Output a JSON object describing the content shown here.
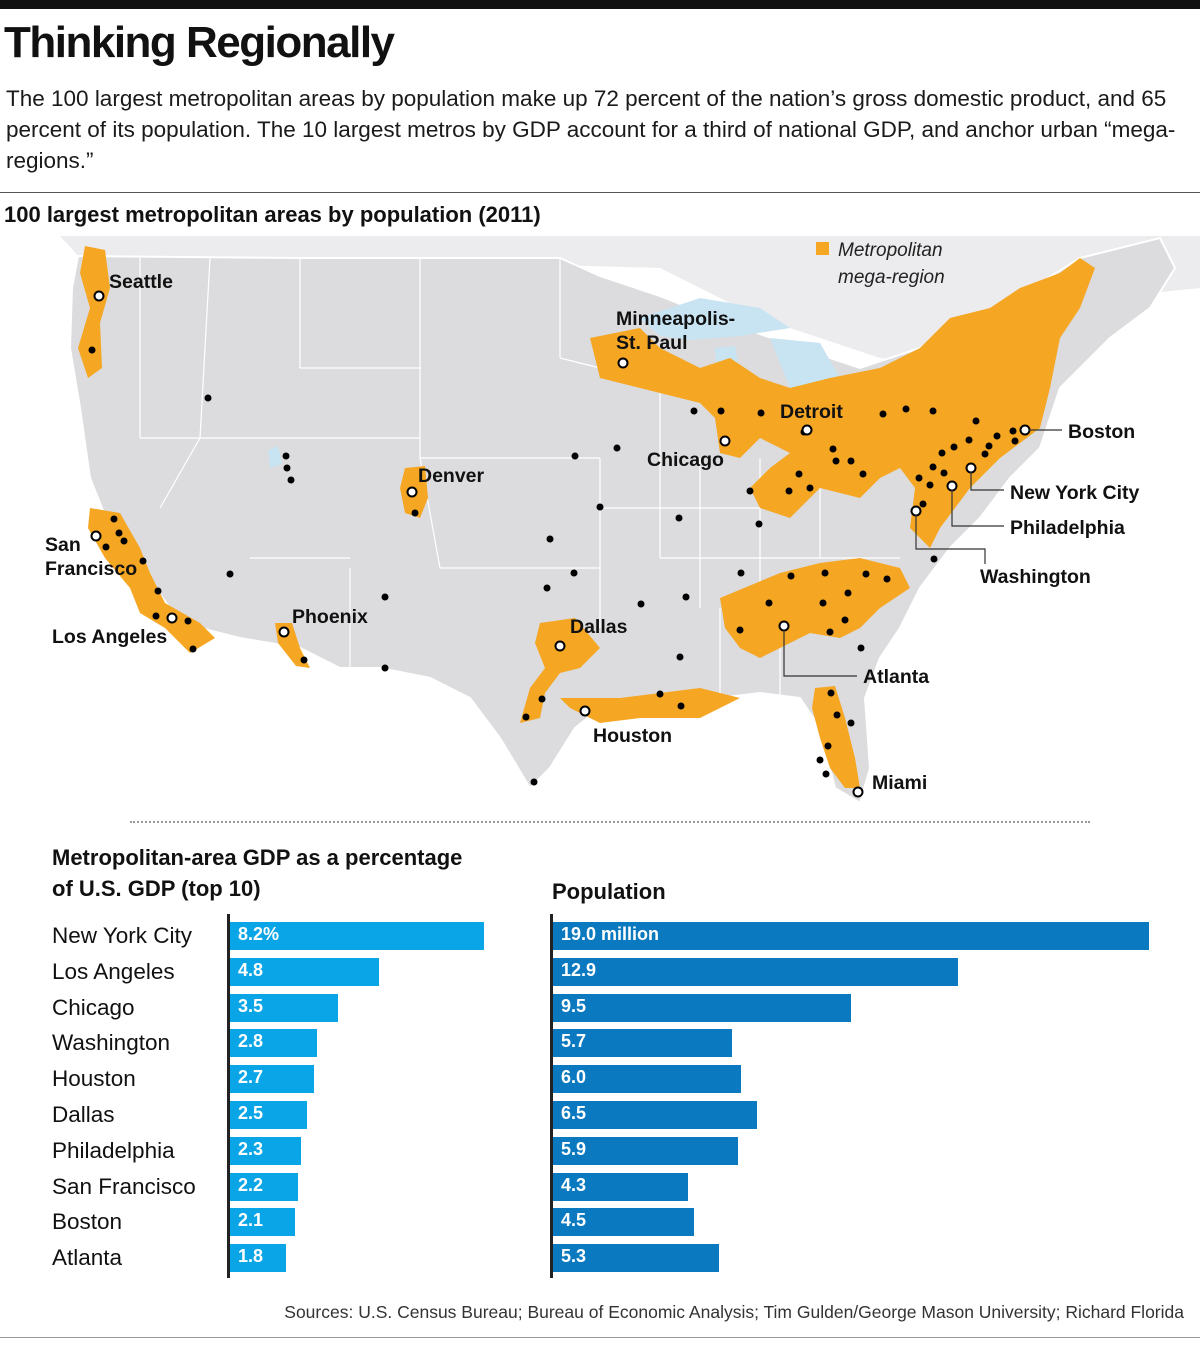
{
  "header": {
    "title": "Thinking Regionally",
    "subtitle": "The 100 largest metropolitan areas by population make up 72 percent of the nation’s gross domestic product, and 65 percent of its population. The 10 largest metros by GDP account for a third of national GDP, and anchor urban “mega-regions.”"
  },
  "map": {
    "title": "100 largest metropolitan areas by population (2011)",
    "legend_label": "Metropolitan",
    "legend_label_2": "mega-region",
    "cities": [
      "Seattle",
      "Minneapolis-",
      "St. Paul",
      "Detroit",
      "Boston",
      "Chicago",
      "Denver",
      "New York City",
      "Philadelphia",
      "San",
      "Francisco",
      "Washington",
      "Phoenix",
      "Dallas",
      "Los Angeles",
      "Atlanta",
      "Houston",
      "Miami"
    ],
    "colors": {
      "land": "#dcdcde",
      "water": "#c8e4f2",
      "region": "#f5a623",
      "dot": "#000000"
    }
  },
  "chart_data": [
    {
      "type": "bar",
      "title": "Metropolitan-area GDP as a percentage of U.S. GDP (top 10)",
      "categories": [
        "New York City",
        "Los Angeles",
        "Chicago",
        "Washington",
        "Houston",
        "Dallas",
        "Philadelphia",
        "San Francisco",
        "Boston",
        "Atlanta"
      ],
      "values": [
        8.2,
        4.8,
        3.5,
        2.8,
        2.7,
        2.5,
        2.3,
        2.2,
        2.1,
        1.8
      ],
      "value_labels": [
        "8.2%",
        "4.8",
        "3.5",
        "2.8",
        "2.7",
        "2.5",
        "2.3",
        "2.2",
        "2.1",
        "1.8"
      ],
      "color": "#0aa5e6",
      "grid": false
    },
    {
      "type": "bar",
      "title": "Population",
      "categories": [
        "New York City",
        "Los Angeles",
        "Chicago",
        "Washington",
        "Houston",
        "Dallas",
        "Philadelphia",
        "San Francisco",
        "Boston",
        "Atlanta"
      ],
      "values": [
        19.0,
        12.9,
        9.5,
        5.7,
        6.0,
        6.5,
        5.9,
        4.3,
        4.5,
        5.3
      ],
      "value_labels": [
        "19.0 million",
        "12.9",
        "9.5",
        "5.7",
        "6.0",
        "6.5",
        "5.9",
        "4.3",
        "4.5",
        "5.3"
      ],
      "color": "#0b79c0",
      "grid": false
    }
  ],
  "footer": {
    "sources": "Sources: U.S. Census Bureau; Bureau of Economic Analysis; Tim Gulden/George Mason University; Richard Florida"
  }
}
